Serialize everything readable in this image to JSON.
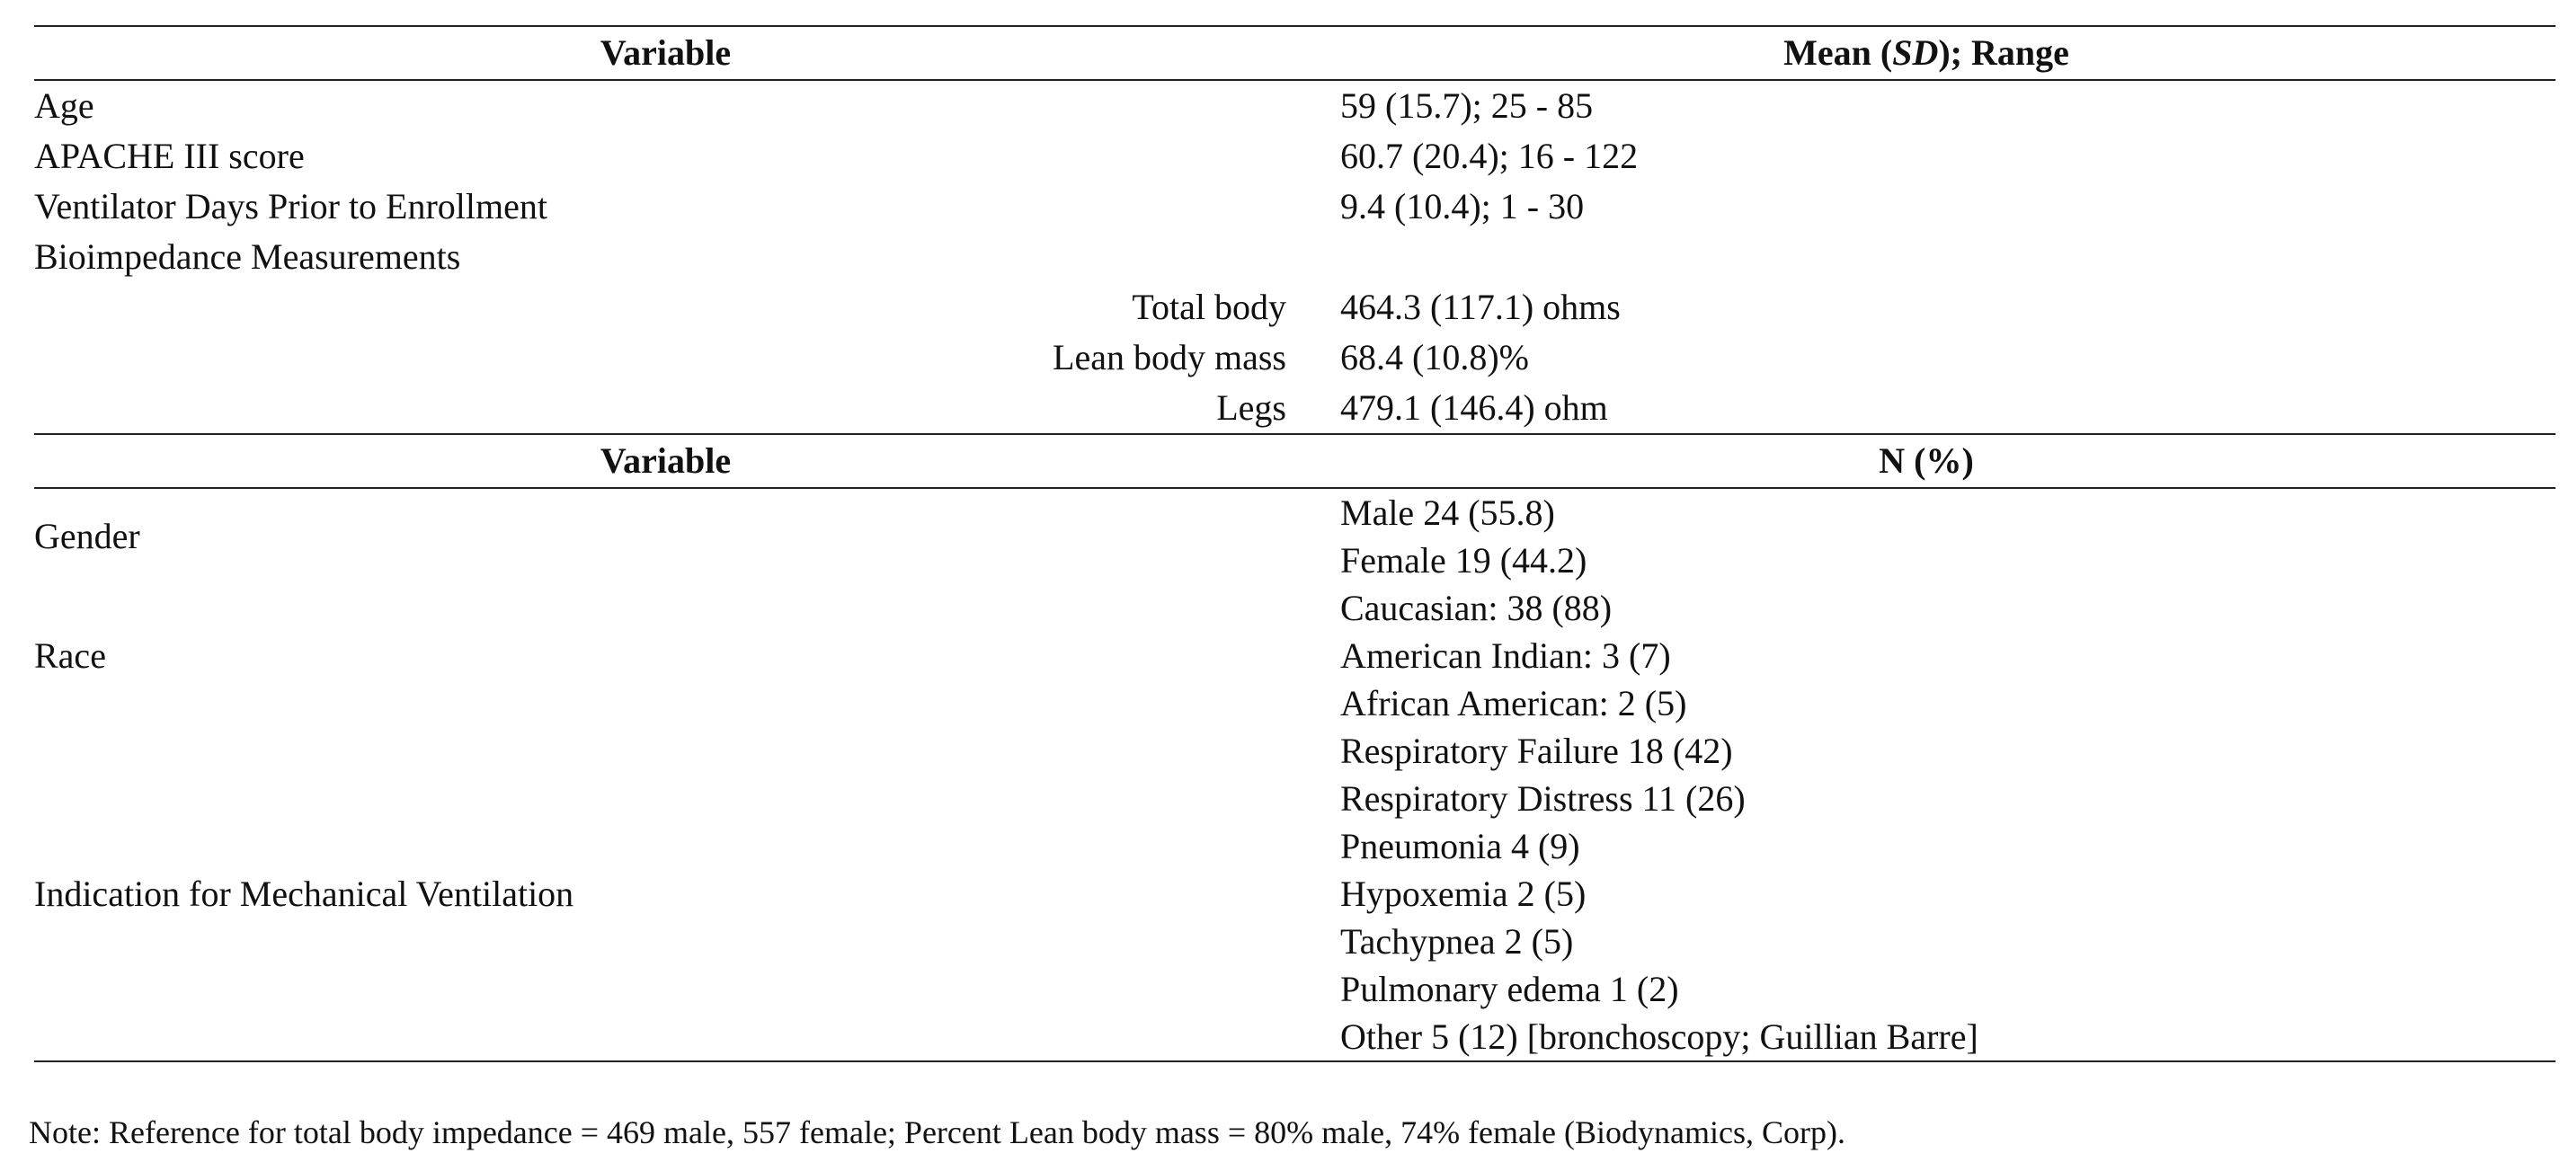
{
  "table": {
    "section1": {
      "header_variable": "Variable",
      "header_value_prefix": "Mean (",
      "header_value_sd": "SD",
      "header_value_suffix": "); Range",
      "rows": [
        {
          "label": "Age",
          "value": "59 (15.7); 25 - 85"
        },
        {
          "label": "APACHE III score",
          "value": "60.7 (20.4); 16 - 122"
        },
        {
          "label": "Ventilator Days Prior to Enrollment",
          "value": "9.4 (10.4); 1 - 30"
        },
        {
          "label": "Bioimpedance Measurements",
          "value": ""
        }
      ],
      "subrows": [
        {
          "label": "Total body",
          "value": "464.3 (117.1) ohms"
        },
        {
          "label": "Lean body mass",
          "value": "68.4 (10.8)%"
        },
        {
          "label": "Legs",
          "value": "479.1 (146.4) ohm"
        }
      ]
    },
    "section2": {
      "header_variable": "Variable",
      "header_value": "N (%)",
      "groups": [
        {
          "label": "Gender",
          "values": [
            "Male 24 (55.8)",
            "Female 19 (44.2)"
          ]
        },
        {
          "label": "Race",
          "values": [
            "Caucasian: 38 (88)",
            "American Indian: 3 (7)",
            "African American: 2 (5)"
          ]
        },
        {
          "label": "Indication for Mechanical Ventilation",
          "values": [
            "Respiratory Failure 18 (42)",
            "Respiratory Distress 11 (26)",
            "Pneumonia 4 (9)",
            "Hypoxemia 2 (5)",
            "Tachypnea 2 (5)",
            "Pulmonary edema 1 (2)",
            "Other 5 (12) [bronchoscopy; Guillian Barre]"
          ]
        }
      ]
    }
  },
  "note": "Note: Reference for total body impedance = 469 male, 557 female; Percent Lean body mass = 80% male, 74% female (Biodynamics, Corp)."
}
